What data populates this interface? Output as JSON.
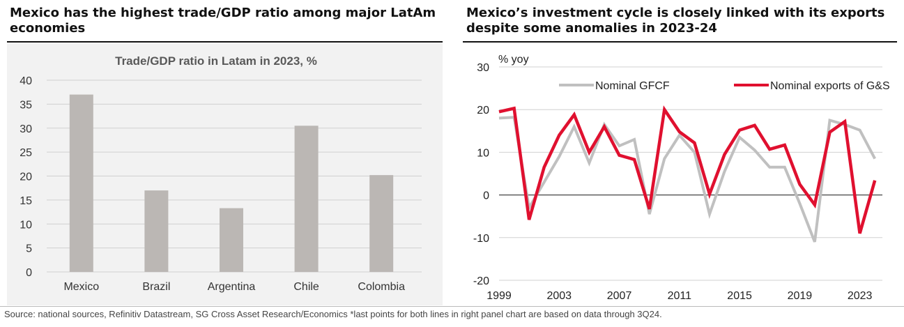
{
  "left_panel": {
    "heading": "Mexico has the highest trade/GDP ratio among major LatAm economies"
  },
  "right_panel": {
    "heading": "Mexico’s investment cycle is closely linked with its exports despite some anomalies in 2023-24"
  },
  "footnote": "Source: national sources, Refinitiv Datastream, SG Cross Asset Research/Economics *last points for both lines in right panel chart are based on data through 3Q24.",
  "colors": {
    "bar": "#bbb7b4",
    "gfcf": "#c0c0c0",
    "exports": "#e0102f",
    "panel_bg": "#f2f2f2"
  },
  "chart_data": [
    {
      "type": "bar",
      "title": "Trade/GDP ratio in Latam in 2023, %",
      "categories": [
        "Mexico",
        "Brazil",
        "Argentina",
        "Chile",
        "Colombia"
      ],
      "values": [
        37,
        17,
        13.3,
        30.5,
        20.2
      ],
      "ylim": [
        0,
        40
      ],
      "yticks": [
        0,
        5,
        10,
        15,
        20,
        25,
        30,
        35,
        40
      ],
      "grid": true
    },
    {
      "type": "line",
      "ylabel": "% yoy",
      "ylim": [
        -20,
        30
      ],
      "yticks": [
        -20,
        -10,
        0,
        10,
        20,
        30
      ],
      "xlim": [
        1999,
        2024.5
      ],
      "xticks": [
        1999,
        2003,
        2007,
        2011,
        2015,
        2019,
        2023
      ],
      "legend_position": "top",
      "grid": true,
      "series": [
        {
          "name": "Nominal GFCF",
          "x": [
            1999,
            2000,
            2001,
            2002,
            2003,
            2004,
            2005,
            2006,
            2007,
            2008,
            2009,
            2010,
            2011,
            2012,
            2013,
            2014,
            2015,
            2016,
            2017,
            2018,
            2019,
            2020,
            2021,
            2022,
            2023,
            2024
          ],
          "y": [
            18,
            18.2,
            -3,
            3,
            9,
            16,
            7.5,
            16.5,
            11.5,
            13,
            -4.5,
            8.5,
            14,
            10,
            -4.5,
            5.5,
            13.5,
            10.5,
            6.5,
            6.5,
            -2,
            -11,
            17.5,
            16.5,
            15.2,
            8.5
          ]
        },
        {
          "name": "Nominal exports of G&S",
          "x": [
            1999,
            2000,
            2001,
            2002,
            2003,
            2004,
            2005,
            2006,
            2007,
            2008,
            2009,
            2010,
            2011,
            2012,
            2013,
            2014,
            2015,
            2016,
            2017,
            2018,
            2019,
            2020,
            2021,
            2022,
            2023,
            2024
          ],
          "y": [
            19.5,
            20.3,
            -5.8,
            6.5,
            14,
            18.8,
            10,
            16,
            9.3,
            8.3,
            -3.3,
            20,
            14.8,
            12.2,
            0.2,
            9.5,
            15.2,
            16.3,
            10.7,
            11.7,
            2.5,
            -2.3,
            14.7,
            17.2,
            -9,
            3.4
          ]
        }
      ]
    }
  ]
}
